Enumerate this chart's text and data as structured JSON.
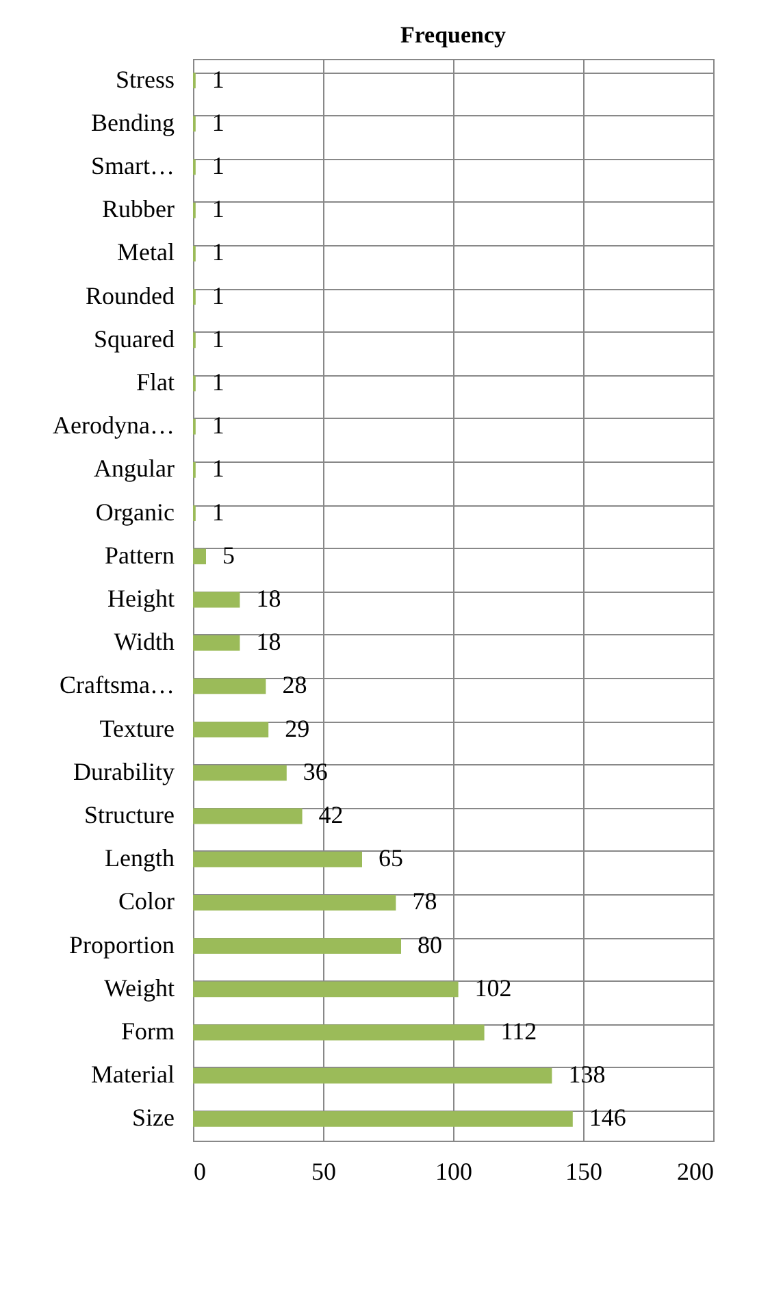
{
  "chart_data": {
    "type": "bar",
    "title": "Frequency",
    "orientation": "horizontal",
    "categories": [
      "Stress",
      "Bending",
      "Smart…",
      "Rubber",
      "Metal",
      "Rounded",
      "Squared",
      "Flat",
      "Aerodyna…",
      "Angular",
      "Organic",
      "Pattern",
      "Height",
      "Width",
      "Craftsma…",
      "Texture",
      "Durability",
      "Structure",
      "Length",
      "Color",
      "Proportion",
      "Weight",
      "Form",
      "Material",
      "Size"
    ],
    "values": [
      1,
      1,
      1,
      1,
      1,
      1,
      1,
      1,
      1,
      1,
      1,
      5,
      18,
      18,
      28,
      29,
      36,
      42,
      65,
      78,
      80,
      102,
      112,
      138,
      146
    ],
    "color": "#9bbb59",
    "xlim": [
      0,
      200
    ],
    "xticks": [
      0,
      50,
      100,
      150,
      200
    ],
    "grid": true,
    "data_labels": true
  }
}
